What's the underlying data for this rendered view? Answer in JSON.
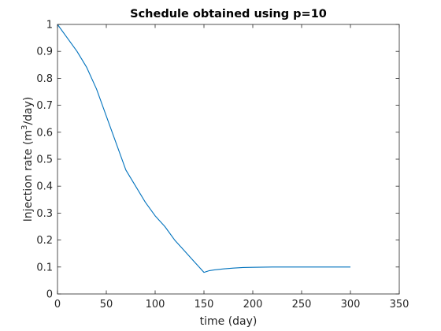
{
  "chart_data": {
    "type": "line",
    "title": "Schedule obtained using p=10",
    "xlabel": "time (day)",
    "ylabel": {
      "pre": "Injection rate (m",
      "sup": "3",
      "post": "/day)"
    },
    "xlim": [
      0,
      350
    ],
    "ylim": [
      0,
      1
    ],
    "xticks": [
      0,
      50,
      100,
      150,
      200,
      250,
      300,
      350
    ],
    "yticks": [
      0,
      0.1,
      0.2,
      0.3,
      0.4,
      0.5,
      0.6,
      0.7,
      0.8,
      0.9,
      1
    ],
    "xtick_labels": [
      "0",
      "50",
      "100",
      "150",
      "200",
      "250",
      "300",
      "350"
    ],
    "ytick_labels": [
      "0",
      "0.1",
      "0.2",
      "0.3",
      "0.4",
      "0.5",
      "0.6",
      "0.7",
      "0.8",
      "0.9",
      "1"
    ],
    "grid": false,
    "series": [
      {
        "color": "#0072bd",
        "x": [
          0,
          10,
          20,
          30,
          40,
          50,
          60,
          70,
          80,
          90,
          100,
          110,
          120,
          130,
          140,
          150,
          155,
          160,
          170,
          180,
          190,
          200,
          220,
          250,
          280,
          300
        ],
        "y": [
          1.0,
          0.95,
          0.9,
          0.84,
          0.76,
          0.66,
          0.56,
          0.46,
          0.4,
          0.34,
          0.29,
          0.25,
          0.2,
          0.16,
          0.12,
          0.08,
          0.086,
          0.089,
          0.093,
          0.096,
          0.098,
          0.099,
          0.1,
          0.1,
          0.1,
          0.1
        ]
      }
    ]
  }
}
